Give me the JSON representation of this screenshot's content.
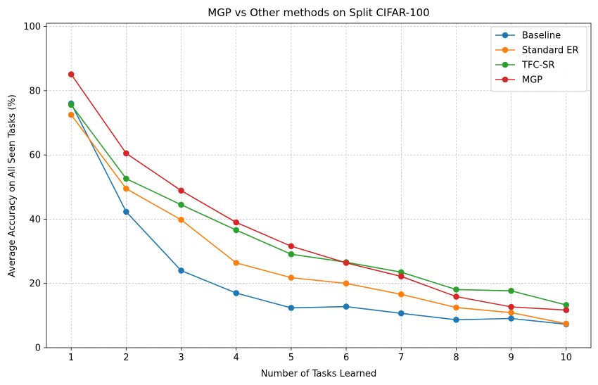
{
  "chart_data": {
    "type": "line",
    "title": "MGP vs Other methods on Split CIFAR-100",
    "xlabel": "Number of Tasks Learned",
    "ylabel": "Average Accuracy on All Seen Tasks (%)",
    "x": [
      1,
      2,
      3,
      4,
      5,
      6,
      7,
      8,
      9,
      10
    ],
    "xticks": [
      "1",
      "2",
      "3",
      "4",
      "5",
      "6",
      "7",
      "8",
      "9",
      "10"
    ],
    "yticks": [
      "0",
      "20",
      "40",
      "60",
      "80",
      "100"
    ],
    "xlim": [
      0.55,
      10.45
    ],
    "ylim": [
      0,
      101
    ],
    "grid": true,
    "legend_position": "top-right",
    "series": [
      {
        "name": "Baseline",
        "color": "#1f77b4",
        "values": [
          76.0,
          42.3,
          24.0,
          17.0,
          12.4,
          12.8,
          10.7,
          8.7,
          9.1,
          7.3
        ]
      },
      {
        "name": "Standard ER",
        "color": "#ff7f0e",
        "values": [
          72.5,
          49.5,
          39.8,
          26.4,
          21.8,
          20.0,
          16.6,
          12.5,
          10.9,
          7.5
        ]
      },
      {
        "name": "TFC-SR",
        "color": "#2ca02c",
        "values": [
          75.6,
          52.6,
          44.5,
          36.6,
          29.1,
          26.6,
          23.5,
          18.1,
          17.7,
          13.3
        ]
      },
      {
        "name": "MGP",
        "color": "#d62728",
        "values": [
          85.1,
          60.5,
          48.9,
          39.0,
          31.6,
          26.4,
          22.2,
          15.9,
          12.7,
          11.7
        ]
      }
    ]
  }
}
